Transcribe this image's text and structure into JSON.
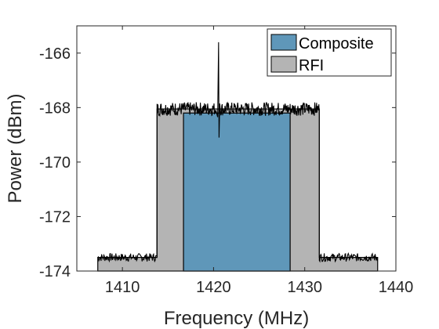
{
  "chart_data": {
    "type": "area",
    "title": "",
    "xlabel": "Frequency (MHz)",
    "ylabel": "Power (dBm)",
    "xlim": [
      1405,
      1440
    ],
    "ylim": [
      -174,
      -165
    ],
    "xticks": [
      1410,
      1420,
      1430,
      1440
    ],
    "yticks": [
      -174,
      -172,
      -170,
      -168,
      -166
    ],
    "legend": {
      "placement": "top-right",
      "entries": [
        {
          "name": "Composite",
          "color": "#5f97b9"
        },
        {
          "name": "RFI",
          "color": "#b4b4b4"
        }
      ]
    },
    "series": [
      {
        "name": "RFI",
        "color": "#b4b4b4",
        "x": [
          1407.3,
          1413.8,
          1413.8,
          1431.6,
          1431.6,
          1438.0
        ],
        "y": [
          -173.5,
          -173.5,
          -168.05,
          -168.05,
          -173.5,
          -173.5
        ]
      },
      {
        "name": "Composite",
        "color": "#5f97b9",
        "x": [
          1416.7,
          1428.4
        ],
        "y": [
          -168.2,
          -168.2
        ]
      }
    ],
    "noise_trace": {
      "color": "#000000",
      "low_band": {
        "x_start": 1407.3,
        "x_end": 1413.8,
        "level": -173.5
      },
      "high_band": {
        "x_start": 1413.8,
        "x_end": 1431.6,
        "level": -168.05
      },
      "right_band": {
        "x_start": 1431.6,
        "x_end": 1438.0,
        "level": -173.5
      },
      "peak": {
        "x": 1420.6,
        "max": -165.6,
        "min": -169.1
      }
    }
  }
}
